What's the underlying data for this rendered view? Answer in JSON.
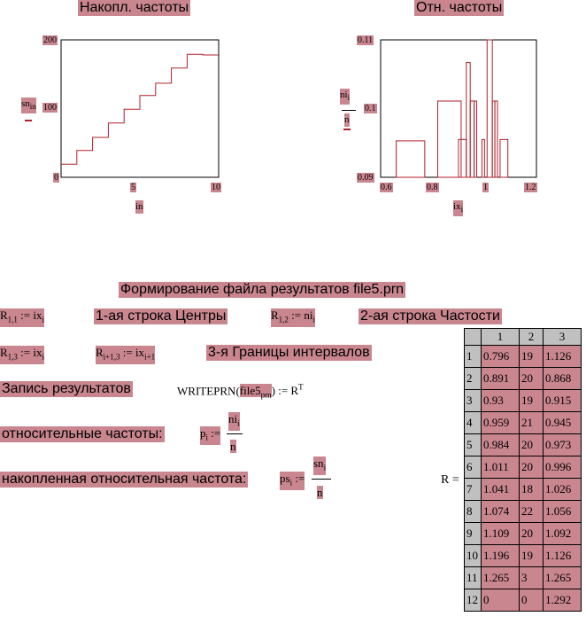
{
  "chart_data": [
    {
      "type": "line",
      "title": "Накопл. частоты",
      "xlabel": "in",
      "ylabel": "sn_in",
      "xlim": [
        0,
        10
      ],
      "ylim": [
        0,
        200
      ],
      "xticks": [
        "5",
        "10"
      ],
      "yticks": [
        "0",
        "100",
        "200"
      ],
      "step": true,
      "x": [
        0,
        1,
        2,
        3,
        4,
        5,
        6,
        7,
        8,
        9,
        10
      ],
      "y": [
        19,
        39,
        58,
        79,
        99,
        119,
        137,
        159,
        179,
        178,
        178
      ]
    },
    {
      "type": "bar",
      "title": "Отн. частоты",
      "xlabel": "ix_i",
      "ylabel": "ni_i / n",
      "xlim": [
        0.6,
        1.2
      ],
      "ylim": [
        0.09,
        0.11
      ],
      "xticks": [
        "0.6",
        "0.8",
        "1",
        "1.2"
      ],
      "yticks": [
        "0.09",
        "0.1",
        "0.11"
      ],
      "intervals": [
        [
          0.66,
          0.77,
          0.0953
        ],
        [
          0.82,
          0.91,
          0.1011
        ],
        [
          0.9,
          0.93,
          0.0955
        ],
        [
          0.93,
          0.945,
          0.1067
        ],
        [
          0.945,
          0.96,
          0.1011
        ],
        [
          0.96,
          0.97,
          0.1011
        ],
        [
          0.99,
          1.0,
          0.0955
        ],
        [
          1.01,
          1.03,
          0.1124
        ],
        [
          1.03,
          1.04,
          0.1011
        ],
        [
          1.04,
          1.05,
          0.1011
        ],
        [
          1.06,
          1.09,
          0.0955
        ]
      ]
    }
  ],
  "labels": {
    "main_title": "Формирование файла результатов file5.prn",
    "row1_title": "1-ая строка Центры",
    "row2_title": "2-ая строка Частости",
    "row3_title": "3-я Границы интервалов",
    "write_label": "Запись результатов",
    "write_func": "WRITEPRN",
    "write_arg": "file5",
    "write_arg_sub": "prn",
    "rel_label": "относительные частоты:",
    "cum_label": "накопленная относительная частота:"
  },
  "matrix": {
    "name": "R",
    "col_headers": [
      "1",
      "2",
      "3"
    ],
    "rows": [
      [
        "1",
        "0.796",
        "19",
        "1.126"
      ],
      [
        "2",
        "0.891",
        "20",
        "0.868"
      ],
      [
        "3",
        "0.93",
        "19",
        "0.915"
      ],
      [
        "4",
        "0.959",
        "21",
        "0.945"
      ],
      [
        "5",
        "0.984",
        "20",
        "0.973"
      ],
      [
        "6",
        "1.011",
        "20",
        "0.996"
      ],
      [
        "7",
        "1.041",
        "18",
        "1.026"
      ],
      [
        "8",
        "1.074",
        "22",
        "1.056"
      ],
      [
        "9",
        "1.109",
        "20",
        "1.092"
      ],
      [
        "10",
        "1.196",
        "19",
        "1.126"
      ],
      [
        "11",
        "1.265",
        "3",
        "1.265"
      ],
      [
        "12",
        "0",
        "0",
        "1.292"
      ]
    ]
  }
}
